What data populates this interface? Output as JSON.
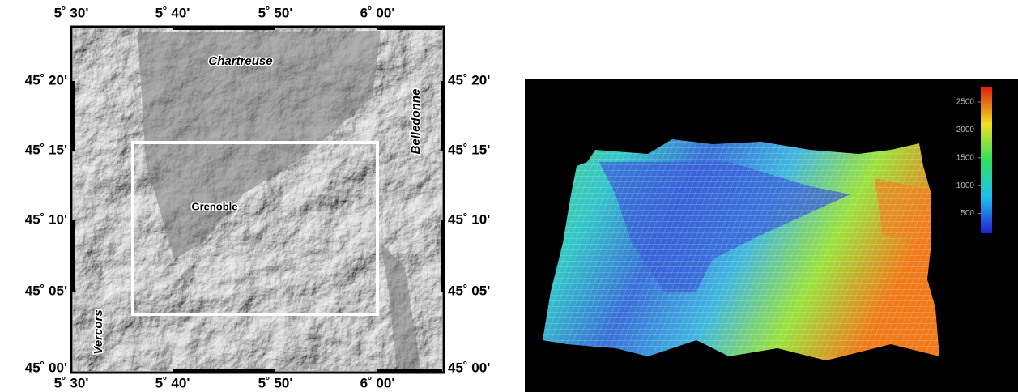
{
  "map": {
    "x_ticks_top": [
      "5˚ 30'",
      "5˚ 40'",
      "5˚ 50'",
      "6˚ 00'"
    ],
    "x_ticks_bottom": [
      "5˚ 30'",
      "5˚ 40'",
      "5˚ 50'",
      "6˚ 00'"
    ],
    "y_ticks_left": [
      "45˚ 20'",
      "45˚ 15'",
      "45˚ 10'",
      "45˚ 05'",
      "45˚ 00'"
    ],
    "y_ticks_right": [
      "45˚ 20'",
      "45˚ 15'",
      "45˚ 10'",
      "45˚ 05'",
      "45˚ 00'"
    ],
    "places": {
      "chartreuse": "Chartreuse",
      "belledonne": "Belledonne",
      "grenoble": "Grenoble",
      "vercors": "Vercors"
    }
  },
  "surface": {
    "colorbar_ticks": [
      2500,
      2000,
      1500,
      1000,
      500
    ]
  }
}
